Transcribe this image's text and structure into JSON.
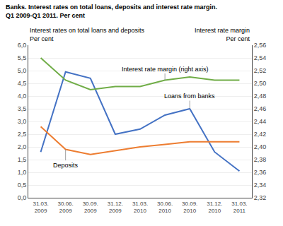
{
  "chart_data": {
    "type": "line",
    "title": "Banks. Interest rates on total loans, deposits and interest rate margin.",
    "subtitle": "Q1 2009-Q1 2011. Per cent",
    "ylabel": "Interest rates on total loans and deposits\nPer cent",
    "y2label": "Interest rate margin\nPer cent",
    "categories": [
      "31.03.\n2009",
      "30.06.\n2009",
      "30.09.\n2009",
      "31.12.\n2009",
      "31.03.\n2010",
      "30.06.\n2010",
      "30.09.\n2010",
      "31.12.\n2010",
      "31.03.\n2011"
    ],
    "series": [
      {
        "name": "Loans from banks",
        "color": "#4472c4",
        "values": [
          1.8,
          4.95,
          4.7,
          2.5,
          2.7,
          3.25,
          3.5,
          1.8,
          1.05
        ]
      },
      {
        "name": "Deposits",
        "color": "#ed7d31",
        "values": [
          2.8,
          1.9,
          1.7,
          1.85,
          2.0,
          2.1,
          2.2,
          2.2,
          2.2
        ]
      },
      {
        "name": "Interest rate margin (right axis)",
        "color": "#70ad47",
        "values": [
          2.54,
          2.505,
          2.49,
          2.495,
          2.495,
          2.505,
          2.51,
          2.505,
          2.505
        ],
        "axis": "y2"
      }
    ],
    "ylim": [
      0.0,
      6.0
    ],
    "yticks": [
      {
        "value": 0.0,
        "label": "0,0"
      },
      {
        "value": 0.5,
        "label": "0,5"
      },
      {
        "value": 1.0,
        "label": "1,0"
      },
      {
        "value": 1.5,
        "label": "1,5"
      },
      {
        "value": 2.0,
        "label": "2,0"
      },
      {
        "value": 2.5,
        "label": "2,5"
      },
      {
        "value": 3.0,
        "label": "3,0"
      },
      {
        "value": 3.5,
        "label": "3,5"
      },
      {
        "value": 4.0,
        "label": "4,0"
      },
      {
        "value": 4.5,
        "label": "4,5"
      },
      {
        "value": 5.0,
        "label": "5,0"
      },
      {
        "value": 5.5,
        "label": "5,5"
      },
      {
        "value": 6.0,
        "label": "6,0"
      }
    ],
    "y2lim": [
      2.32,
      2.56
    ],
    "y2ticks": [
      {
        "value": 2.32,
        "label": "2,32"
      },
      {
        "value": 2.34,
        "label": "2,34"
      },
      {
        "value": 2.36,
        "label": "2,36"
      },
      {
        "value": 2.38,
        "label": "2,38"
      },
      {
        "value": 2.4,
        "label": "2,40"
      },
      {
        "value": 2.42,
        "label": "2,42"
      },
      {
        "value": 2.44,
        "label": "2,44"
      },
      {
        "value": 2.46,
        "label": "2,46"
      },
      {
        "value": 2.48,
        "label": "2,48"
      },
      {
        "value": 2.5,
        "label": "2,50"
      },
      {
        "value": 2.52,
        "label": "2,52"
      },
      {
        "value": 2.54,
        "label": "2,54"
      },
      {
        "value": 2.56,
        "label": "2,56"
      }
    ],
    "grid": true
  }
}
